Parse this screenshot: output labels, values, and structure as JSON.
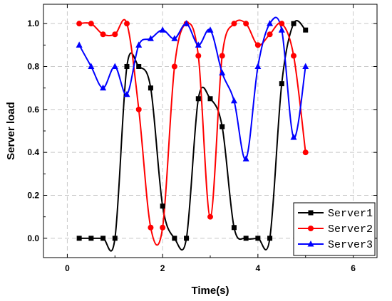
{
  "chart_data": {
    "type": "line",
    "title": "",
    "xlabel": "Time(s)",
    "ylabel": "Server load",
    "xlim": [
      -0.5,
      6.5
    ],
    "ylim": [
      -0.09,
      1.09
    ],
    "xticks": [
      0,
      2,
      4,
      6
    ],
    "xtick_labels": [
      "0",
      "2",
      "4",
      "6"
    ],
    "yticks": [
      0.0,
      0.2,
      0.4,
      0.6,
      0.8,
      1.0
    ],
    "ytick_labels": [
      "0.0",
      "0.2",
      "0.4",
      "0.6",
      "0.8",
      "1.0"
    ],
    "grid": true,
    "smooth": true,
    "legend_position": "bottom-right",
    "series": [
      {
        "name": "Server1",
        "color": "#000000",
        "marker": "square",
        "x": [
          0.25,
          0.5,
          0.75,
          1.0,
          1.25,
          1.5,
          1.75,
          2.0,
          2.25,
          2.5,
          2.75,
          3.0,
          3.25,
          3.5,
          3.75,
          4.0,
          4.25,
          4.5,
          4.75,
          5.0
        ],
        "y": [
          0.0,
          0.0,
          0.0,
          0.0,
          0.8,
          0.8,
          0.7,
          0.15,
          0.0,
          0.0,
          0.65,
          0.65,
          0.52,
          0.05,
          0.0,
          0.0,
          0.0,
          0.72,
          1.0,
          0.97
        ]
      },
      {
        "name": "Server2",
        "color": "#ff0000",
        "marker": "circle",
        "x": [
          0.25,
          0.5,
          0.75,
          1.0,
          1.25,
          1.5,
          1.75,
          2.0,
          2.25,
          2.5,
          2.75,
          3.0,
          3.25,
          3.5,
          3.75,
          4.0,
          4.25,
          4.5,
          4.75,
          5.0
        ],
        "y": [
          1.0,
          1.0,
          0.95,
          0.95,
          1.0,
          0.6,
          0.05,
          0.05,
          0.8,
          1.0,
          0.85,
          0.1,
          0.85,
          1.0,
          1.0,
          0.9,
          0.95,
          1.0,
          0.85,
          0.4
        ]
      },
      {
        "name": "Server3",
        "color": "#0000ff",
        "marker": "triangle",
        "x": [
          0.25,
          0.5,
          0.75,
          1.0,
          1.25,
          1.5,
          1.75,
          2.0,
          2.25,
          2.5,
          2.75,
          3.0,
          3.25,
          3.5,
          3.75,
          4.0,
          4.25,
          4.5,
          4.75,
          5.0
        ],
        "y": [
          0.9,
          0.8,
          0.7,
          0.8,
          0.67,
          0.9,
          0.93,
          0.97,
          0.93,
          1.0,
          0.9,
          0.97,
          0.77,
          0.64,
          0.37,
          0.8,
          1.0,
          0.97,
          0.47,
          0.8
        ]
      }
    ]
  }
}
